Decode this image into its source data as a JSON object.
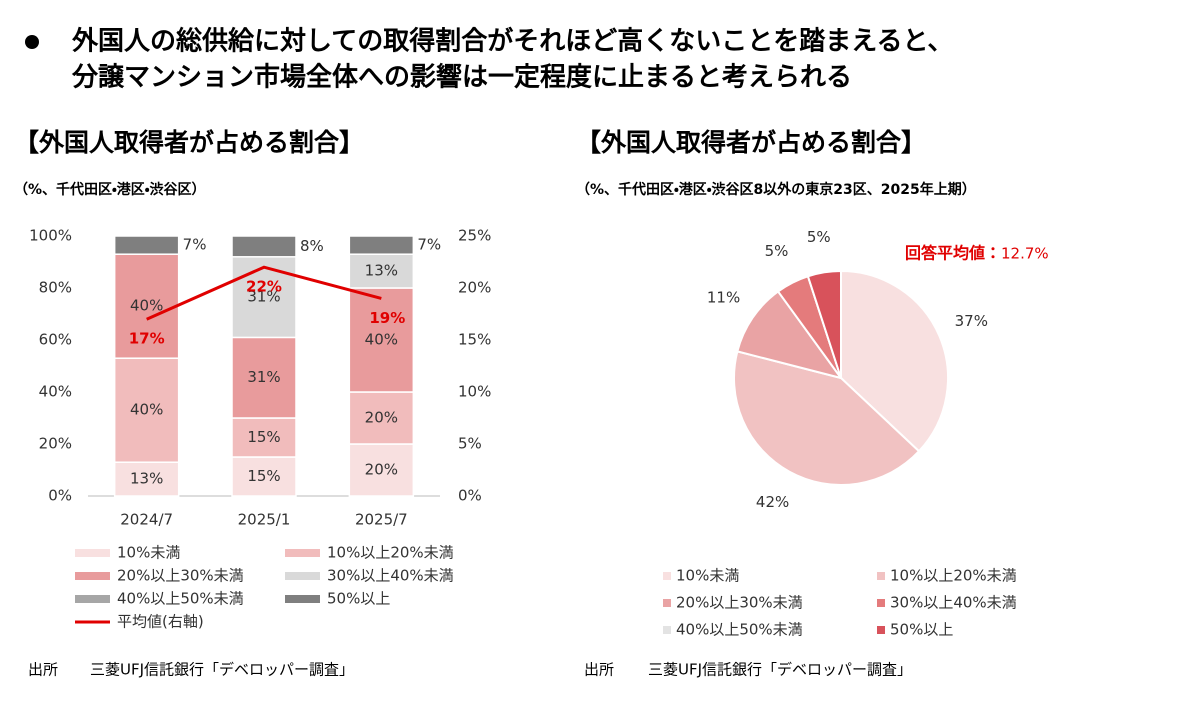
{
  "header": {
    "lines": [
      "外国人の総供給に対しての取得割合がそれほど高くないことを踏まえると、",
      "分譲マンション市場全体への影響は一定程度に止まると考えられる"
    ]
  },
  "chart_data": [
    {
      "type": "stacked-bar",
      "title": "【外国人取得者が占める割合】",
      "subtitle": "（%、千代田区・港区・渋谷区）",
      "categories": [
        "2024/7",
        "2025/1",
        "2025/7"
      ],
      "series": [
        {
          "name": "10%未満",
          "color": "#f8e0e0",
          "values": [
            13,
            15,
            20
          ],
          "value_labels": [
            "13%",
            "15%",
            "20%"
          ]
        },
        {
          "name": "10%以上20%未満",
          "color": "#f1bcbc",
          "values": [
            40,
            15,
            20
          ],
          "value_labels": [
            "40%",
            "15%",
            "20%"
          ]
        },
        {
          "name": "20%以上30%未満",
          "color": "#e89b9c",
          "values": [
            40,
            31,
            40
          ],
          "value_labels": [
            "40%",
            "31%",
            "40%"
          ]
        },
        {
          "name": "30%以上40%未満",
          "color": "#d9d9d9",
          "values": [
            0,
            31,
            13
          ],
          "value_labels": [
            null,
            "31%",
            "13%"
          ]
        },
        {
          "name": "40%以上50%未満",
          "color": "#a6a6a6",
          "values": [
            0,
            0,
            0
          ],
          "value_labels": [
            null,
            null,
            null
          ]
        },
        {
          "name": "50%以上",
          "color": "#7f7f7f",
          "values": [
            7,
            8,
            7
          ],
          "value_labels": [
            "7%",
            "8%",
            "7%"
          ]
        },
        {
          "name": "平均値(右軸)",
          "color": "#e00000",
          "axis": "y2",
          "line": true,
          "values": [
            17,
            22,
            19
          ],
          "value_labels": [
            "17%",
            "22%",
            "19%"
          ]
        }
      ],
      "ylim": [
        0,
        100
      ],
      "yticks": [
        {
          "value": 0,
          "label": "0%"
        },
        {
          "value": 20,
          "label": "20%"
        },
        {
          "value": 40,
          "label": "40%"
        },
        {
          "value": 60,
          "label": "60%"
        },
        {
          "value": 80,
          "label": "80%"
        },
        {
          "value": 100,
          "label": "100%"
        }
      ],
      "y2lim": [
        0,
        25
      ],
      "y2ticks": [
        {
          "value": 0,
          "label": "0%"
        },
        {
          "value": 5,
          "label": "5%"
        },
        {
          "value": 10,
          "label": "10%"
        },
        {
          "value": 15,
          "label": "15%"
        },
        {
          "value": 20,
          "label": "20%"
        },
        {
          "value": 25,
          "label": "25%"
        }
      ],
      "source": {
        "label": "出所",
        "text": "三菱UFJ信託銀行「デベロッパー調査」"
      }
    },
    {
      "type": "pie",
      "title": "【外国人取得者が占める割合】",
      "subtitle": "（%、千代田区・港区・渋谷区8以外の東京23区、2025年上期）",
      "categories": [
        "10%未満",
        "10%以上20%未満",
        "20%以上30%未満",
        "30%以上40%未満",
        "40%以上50%未満",
        "50%以上"
      ],
      "colors": [
        "#f8e0e0",
        "#f1c2c2",
        "#e9a3a4",
        "#e47b7c",
        "#e3e3e3",
        "#d8525b"
      ],
      "values": [
        37,
        42,
        11,
        5,
        0,
        5
      ],
      "value_labels": [
        "37%",
        "42%",
        "11%",
        "5%",
        null,
        "5%"
      ],
      "annotation": {
        "label": "回答平均値：",
        "value": 12.7,
        "value_label": "12.7%"
      },
      "source": {
        "label": "出所",
        "text": "三菱UFJ信託銀行「デベロッパー調査」"
      }
    }
  ]
}
